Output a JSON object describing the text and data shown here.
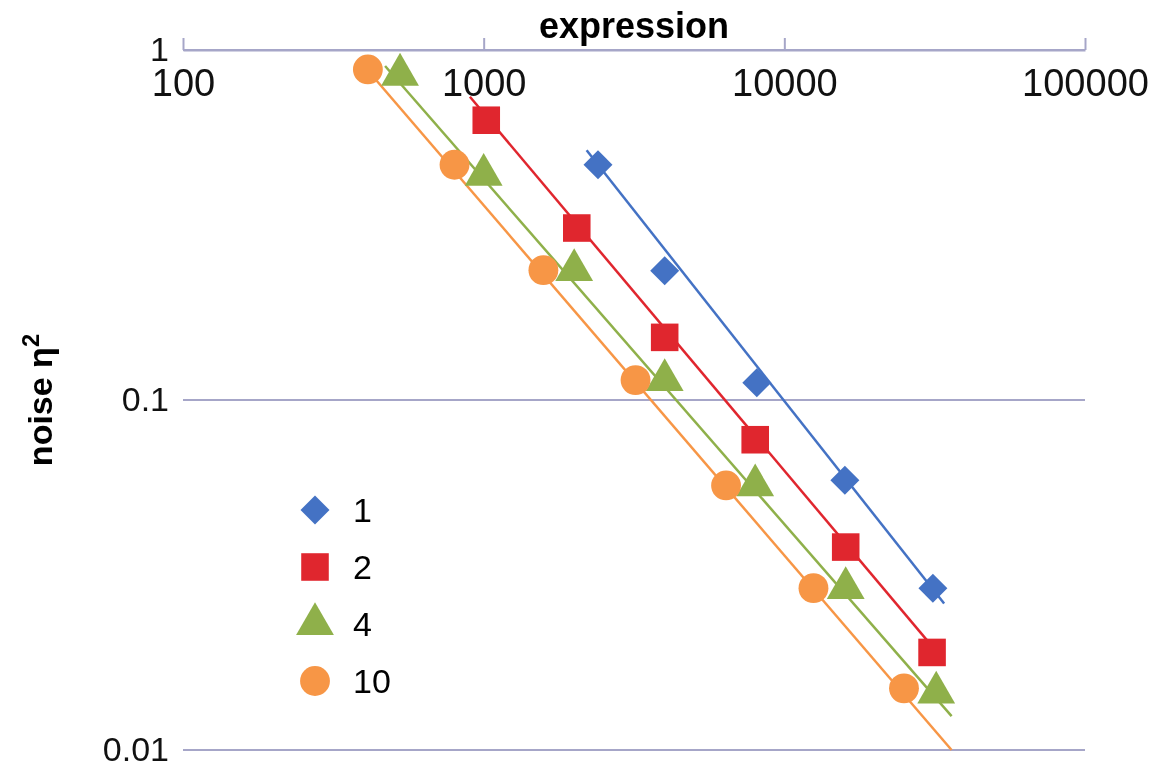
{
  "chart_data": {
    "type": "scatter",
    "xlabel": "expression",
    "ylabel": "noise η$^{2}$",
    "log": "xy",
    "grid": "y",
    "legend": "bottom left",
    "xlim": [
      100,
      100000
    ],
    "xticks": [
      100,
      1000,
      10000,
      100000
    ],
    "ylim": [
      0.01,
      1
    ],
    "yticks": [
      0.01,
      0.1,
      1
    ],
    "series": [
      {
        "name": "1",
        "color": "#4472c4",
        "marker": "diamond",
        "x": [
          2400,
          4000,
          8100,
          15900,
          31200
        ],
        "values": [
          0.47,
          0.234,
          0.112,
          0.059,
          0.029
        ]
      },
      {
        "name": "2",
        "color": "#e0262e",
        "marker": "square",
        "x": [
          1020,
          2040,
          4000,
          8000,
          16000,
          31000
        ],
        "values": [
          0.63,
          0.31,
          0.151,
          0.077,
          0.038,
          0.019
        ]
      },
      {
        "name": "4",
        "color": "#8fb04a",
        "marker": "triangle",
        "x": [
          527,
          1000,
          2000,
          4000,
          8000,
          16000,
          32000
        ],
        "values": [
          0.85,
          0.44,
          0.235,
          0.114,
          0.057,
          0.029,
          0.0146
        ]
      },
      {
        "name": "10",
        "color": "#f79646",
        "marker": "circle",
        "x": [
          412,
          800,
          1580,
          3200,
          6400,
          12500,
          25000
        ],
        "values": [
          0.88,
          0.47,
          0.235,
          0.114,
          0.057,
          0.029,
          0.015
        ]
      },
      {
        "type": "line",
        "color": "#4472c4",
        "marker": "none",
        "x": [
          2200,
          34000
        ],
        "values": [
          0.517,
          0.0262
        ]
      },
      {
        "type": "line",
        "color": "#e0262e",
        "marker": "none",
        "x": [
          900,
          34000
        ],
        "values": [
          0.735,
          0.018
        ]
      },
      {
        "type": "line",
        "color": "#8fb04a",
        "marker": "none",
        "x": [
          470,
          36000
        ],
        "values": [
          0.9,
          0.0125
        ]
      },
      {
        "type": "line",
        "color": "#f79646",
        "marker": "none",
        "x": [
          400,
          36000
        ],
        "values": [
          0.9,
          0.01
        ]
      }
    ]
  }
}
